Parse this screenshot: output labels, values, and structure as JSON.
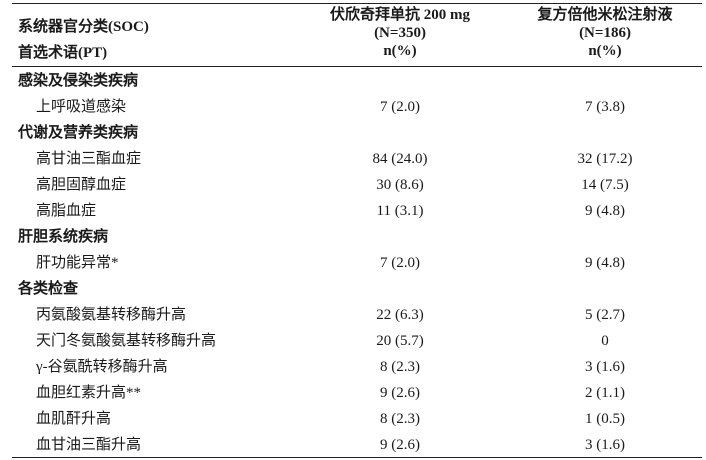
{
  "header": {
    "col1_line1": "系统器官分类(SOC)",
    "col1_line2": "首选术语(PT)",
    "col2_line1": "伏欣奇拜单抗 200 mg",
    "col2_line2": "(N=350)",
    "col2_line3": "n(%)",
    "col3_line1": "复方倍他米松注射液",
    "col3_line2": "(N=186)",
    "col3_line3": "n(%)"
  },
  "rows": [
    {
      "type": "cat",
      "label": "感染及侵染类疾病",
      "v1": "",
      "v2": ""
    },
    {
      "type": "sub",
      "label": "上呼吸道感染",
      "v1": "7 (2.0)",
      "v2": "7 (3.8)"
    },
    {
      "type": "cat",
      "label": "代谢及营养类疾病",
      "v1": "",
      "v2": ""
    },
    {
      "type": "sub",
      "label": "高甘油三酯血症",
      "v1": "84 (24.0)",
      "v2": "32 (17.2)"
    },
    {
      "type": "sub",
      "label": "高胆固醇血症",
      "v1": "30 (8.6)",
      "v2": "14 (7.5)"
    },
    {
      "type": "sub",
      "label": "高脂血症",
      "v1": "11 (3.1)",
      "v2": "9 (4.8)"
    },
    {
      "type": "cat",
      "label": "肝胆系统疾病",
      "v1": "",
      "v2": ""
    },
    {
      "type": "sub",
      "label": "肝功能异常*",
      "v1": "7 (2.0)",
      "v2": "9 (4.8)"
    },
    {
      "type": "cat",
      "label": "各类检查",
      "v1": "",
      "v2": ""
    },
    {
      "type": "sub",
      "label": "丙氨酸氨基转移酶升高",
      "v1": "22 (6.3)",
      "v2": "5 (2.7)"
    },
    {
      "type": "sub",
      "label": "天门冬氨酸氨基转移酶升高",
      "v1": "20 (5.7)",
      "v2": "0"
    },
    {
      "type": "sub",
      "label": "γ-谷氨酰转移酶升高",
      "v1": "8 (2.3)",
      "v2": "3 (1.6)"
    },
    {
      "type": "sub",
      "label": "血胆红素升高**",
      "v1": "9 (2.6)",
      "v2": "2 (1.1)"
    },
    {
      "type": "sub",
      "label": "血肌酐升高",
      "v1": "8 (2.3)",
      "v2": "1 (0.5)"
    },
    {
      "type": "sub",
      "label": "血甘油三酯升高",
      "v1": "9 (2.6)",
      "v2": "3 (1.6)"
    }
  ]
}
